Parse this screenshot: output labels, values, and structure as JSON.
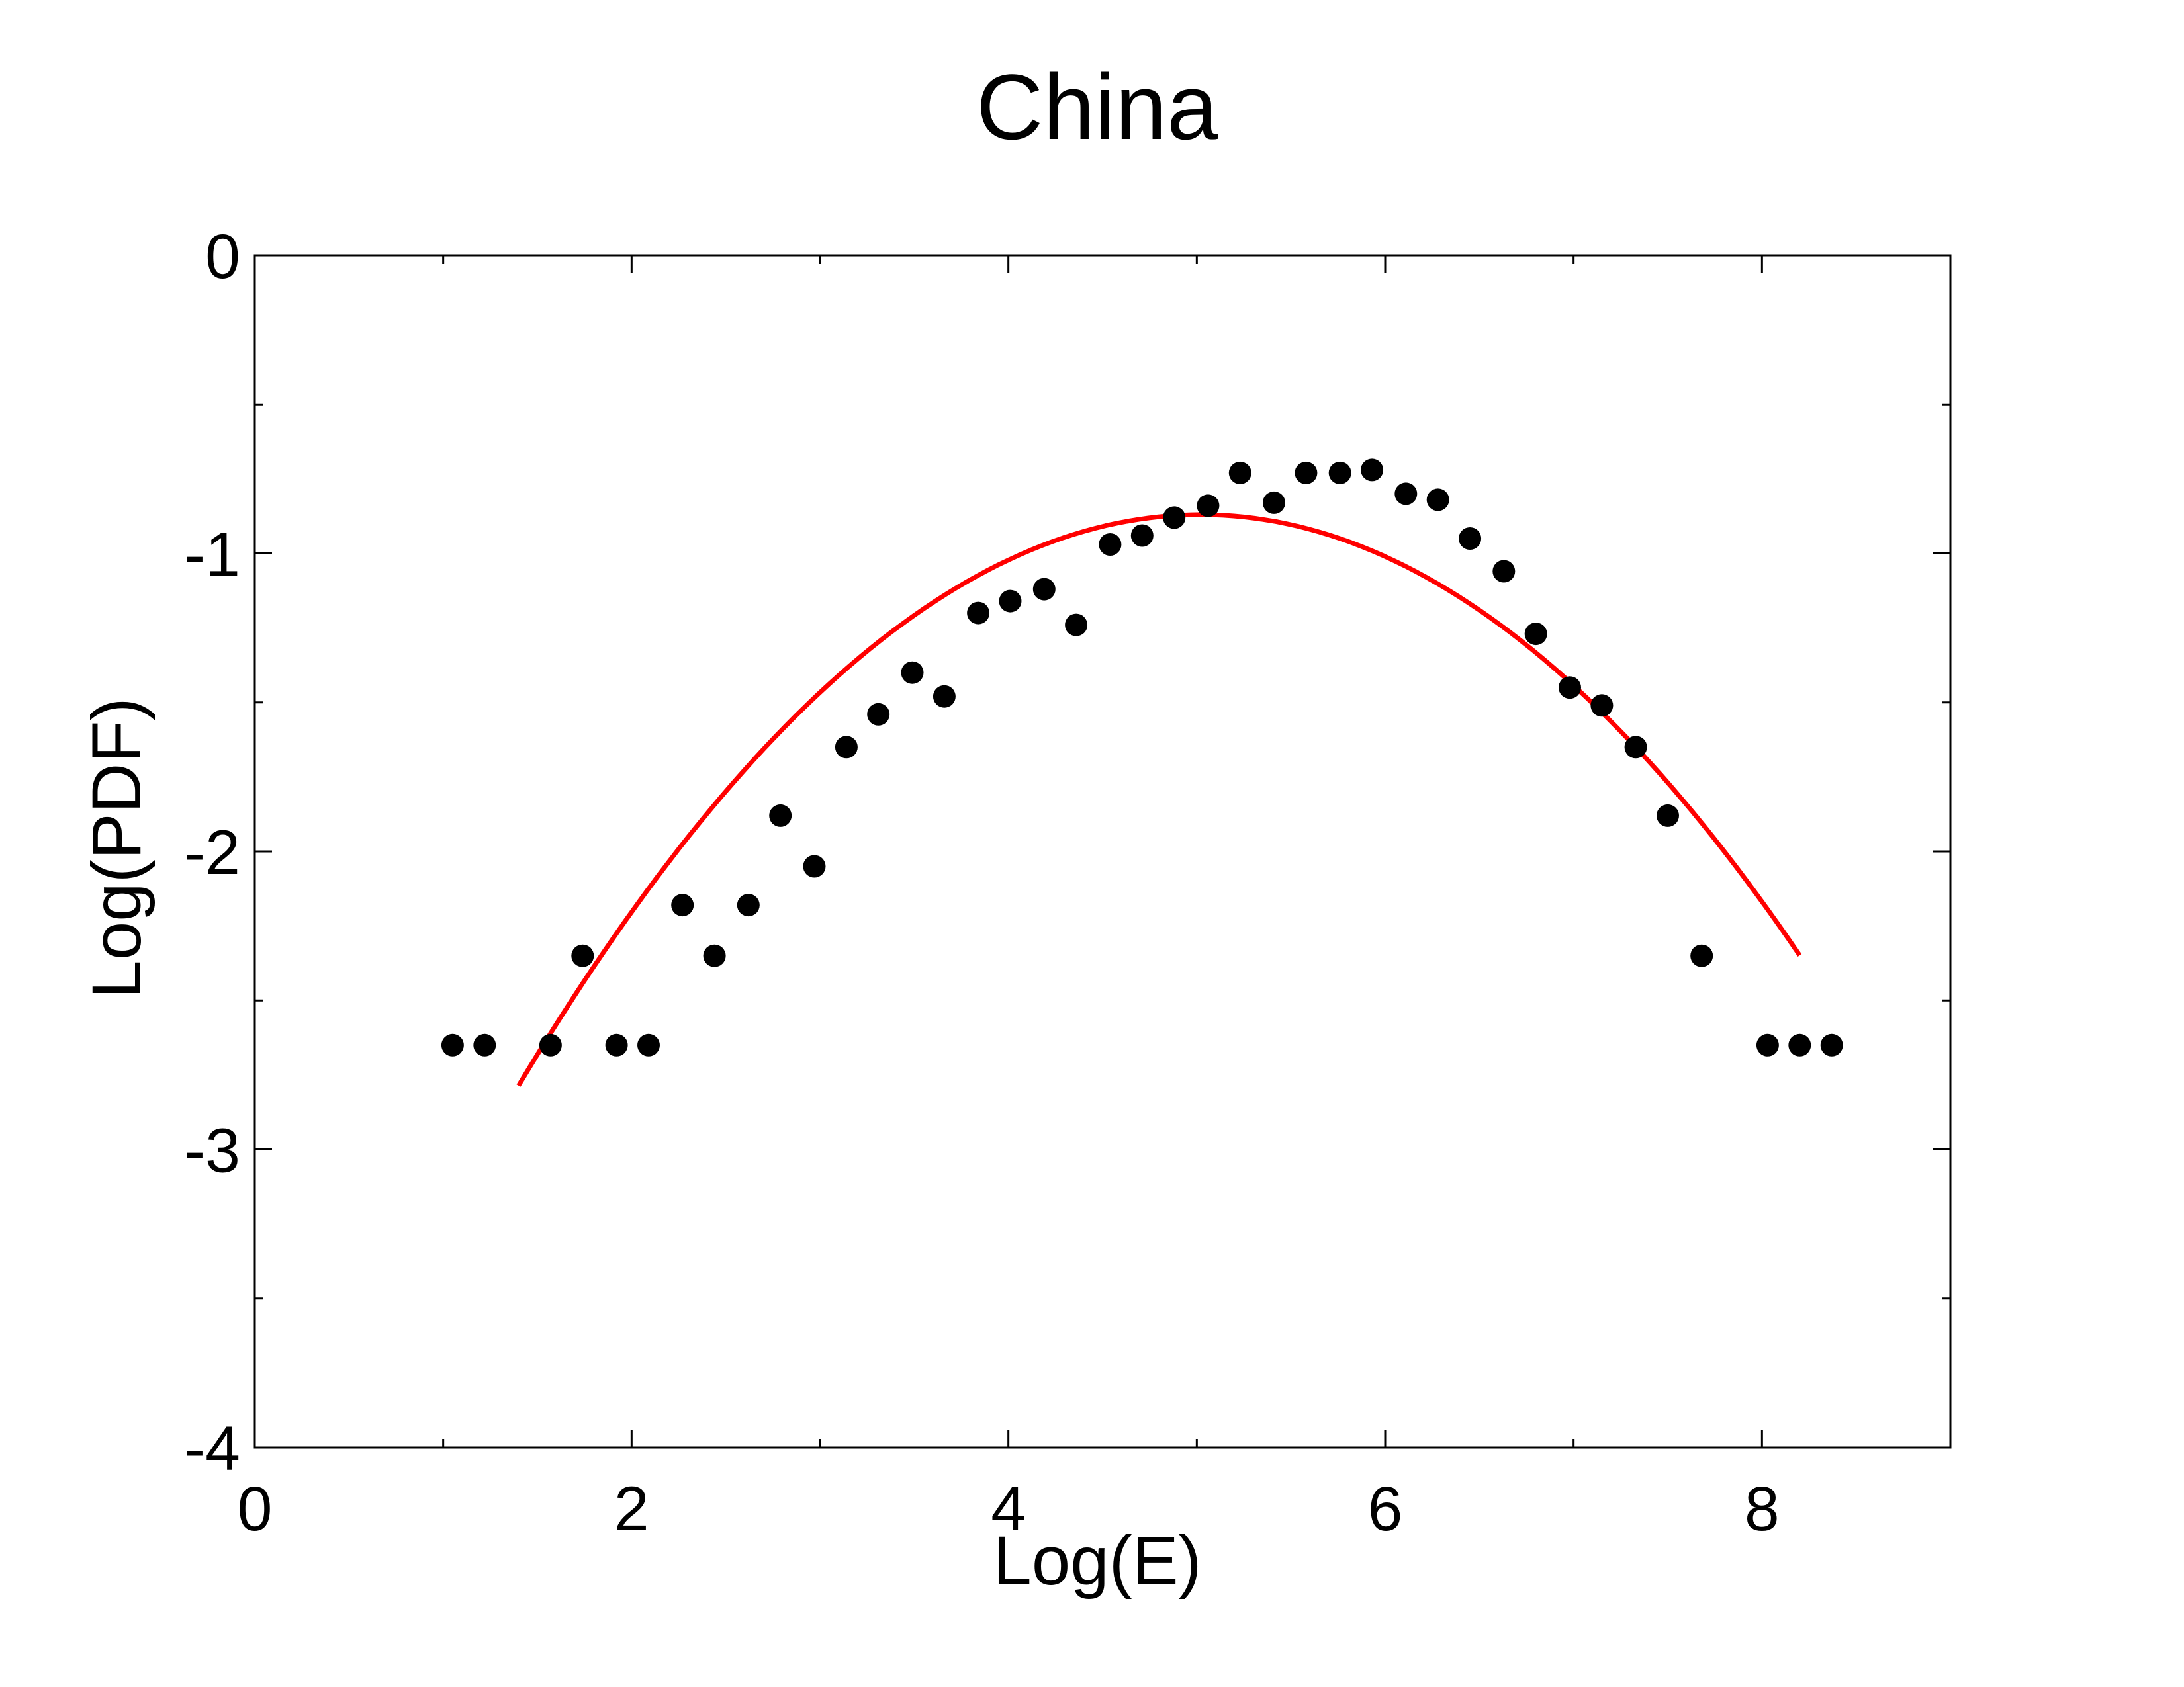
{
  "chart_data": {
    "type": "scatter",
    "title": "China",
    "xlabel": "Log(E)",
    "ylabel": "Log(PDF)",
    "xlim": [
      0,
      9
    ],
    "ylim": [
      -4,
      0
    ],
    "x_ticks": [
      0,
      2,
      4,
      6,
      8
    ],
    "x_tick_labels": [
      "0",
      "2",
      "4",
      "6",
      "8"
    ],
    "y_ticks": [
      0,
      -1,
      -2,
      -3,
      -4
    ],
    "y_tick_labels": [
      "0",
      "-1",
      "-2",
      "-3",
      "-4"
    ],
    "x_minor_ticks": [
      1,
      3,
      5,
      7,
      9
    ],
    "y_minor_ticks": [
      -0.5,
      -1.5,
      -2.5,
      -3.5
    ],
    "grid": false,
    "series": [
      {
        "type": "scatter",
        "color": "#000000",
        "marker": "filled-circle",
        "points": [
          [
            1.05,
            -2.65
          ],
          [
            1.22,
            -2.65
          ],
          [
            1.57,
            -2.65
          ],
          [
            1.74,
            -2.35
          ],
          [
            1.92,
            -2.65
          ],
          [
            2.09,
            -2.65
          ],
          [
            2.27,
            -2.18
          ],
          [
            2.44,
            -2.35
          ],
          [
            2.62,
            -2.18
          ],
          [
            2.79,
            -1.88
          ],
          [
            2.97,
            -2.05
          ],
          [
            3.14,
            -1.65
          ],
          [
            3.31,
            -1.54
          ],
          [
            3.49,
            -1.4
          ],
          [
            3.66,
            -1.48
          ],
          [
            3.84,
            -1.2
          ],
          [
            4.01,
            -1.16
          ],
          [
            4.19,
            -1.12
          ],
          [
            4.36,
            -1.24
          ],
          [
            4.54,
            -0.97
          ],
          [
            4.71,
            -0.94
          ],
          [
            4.88,
            -0.88
          ],
          [
            5.06,
            -0.84
          ],
          [
            5.23,
            -0.73
          ],
          [
            5.41,
            -0.83
          ],
          [
            5.58,
            -0.73
          ],
          [
            5.76,
            -0.73
          ],
          [
            5.93,
            -0.72
          ],
          [
            6.11,
            -0.8
          ],
          [
            6.28,
            -0.82
          ],
          [
            6.45,
            -0.95
          ],
          [
            6.63,
            -1.06
          ],
          [
            6.8,
            -1.27
          ],
          [
            6.98,
            -1.45
          ],
          [
            7.15,
            -1.51
          ],
          [
            7.33,
            -1.65
          ],
          [
            7.5,
            -1.88
          ],
          [
            7.68,
            -2.35
          ],
          [
            8.03,
            -2.65
          ],
          [
            8.2,
            -2.65
          ],
          [
            8.37,
            -2.65
          ]
        ]
      },
      {
        "type": "line",
        "color": "#ff0000",
        "fit": "quadratic",
        "x_range": [
          1.4,
          8.2
        ],
        "peak_x": 5.02,
        "peak_y": -0.87,
        "curvature": -0.1462
      }
    ]
  }
}
